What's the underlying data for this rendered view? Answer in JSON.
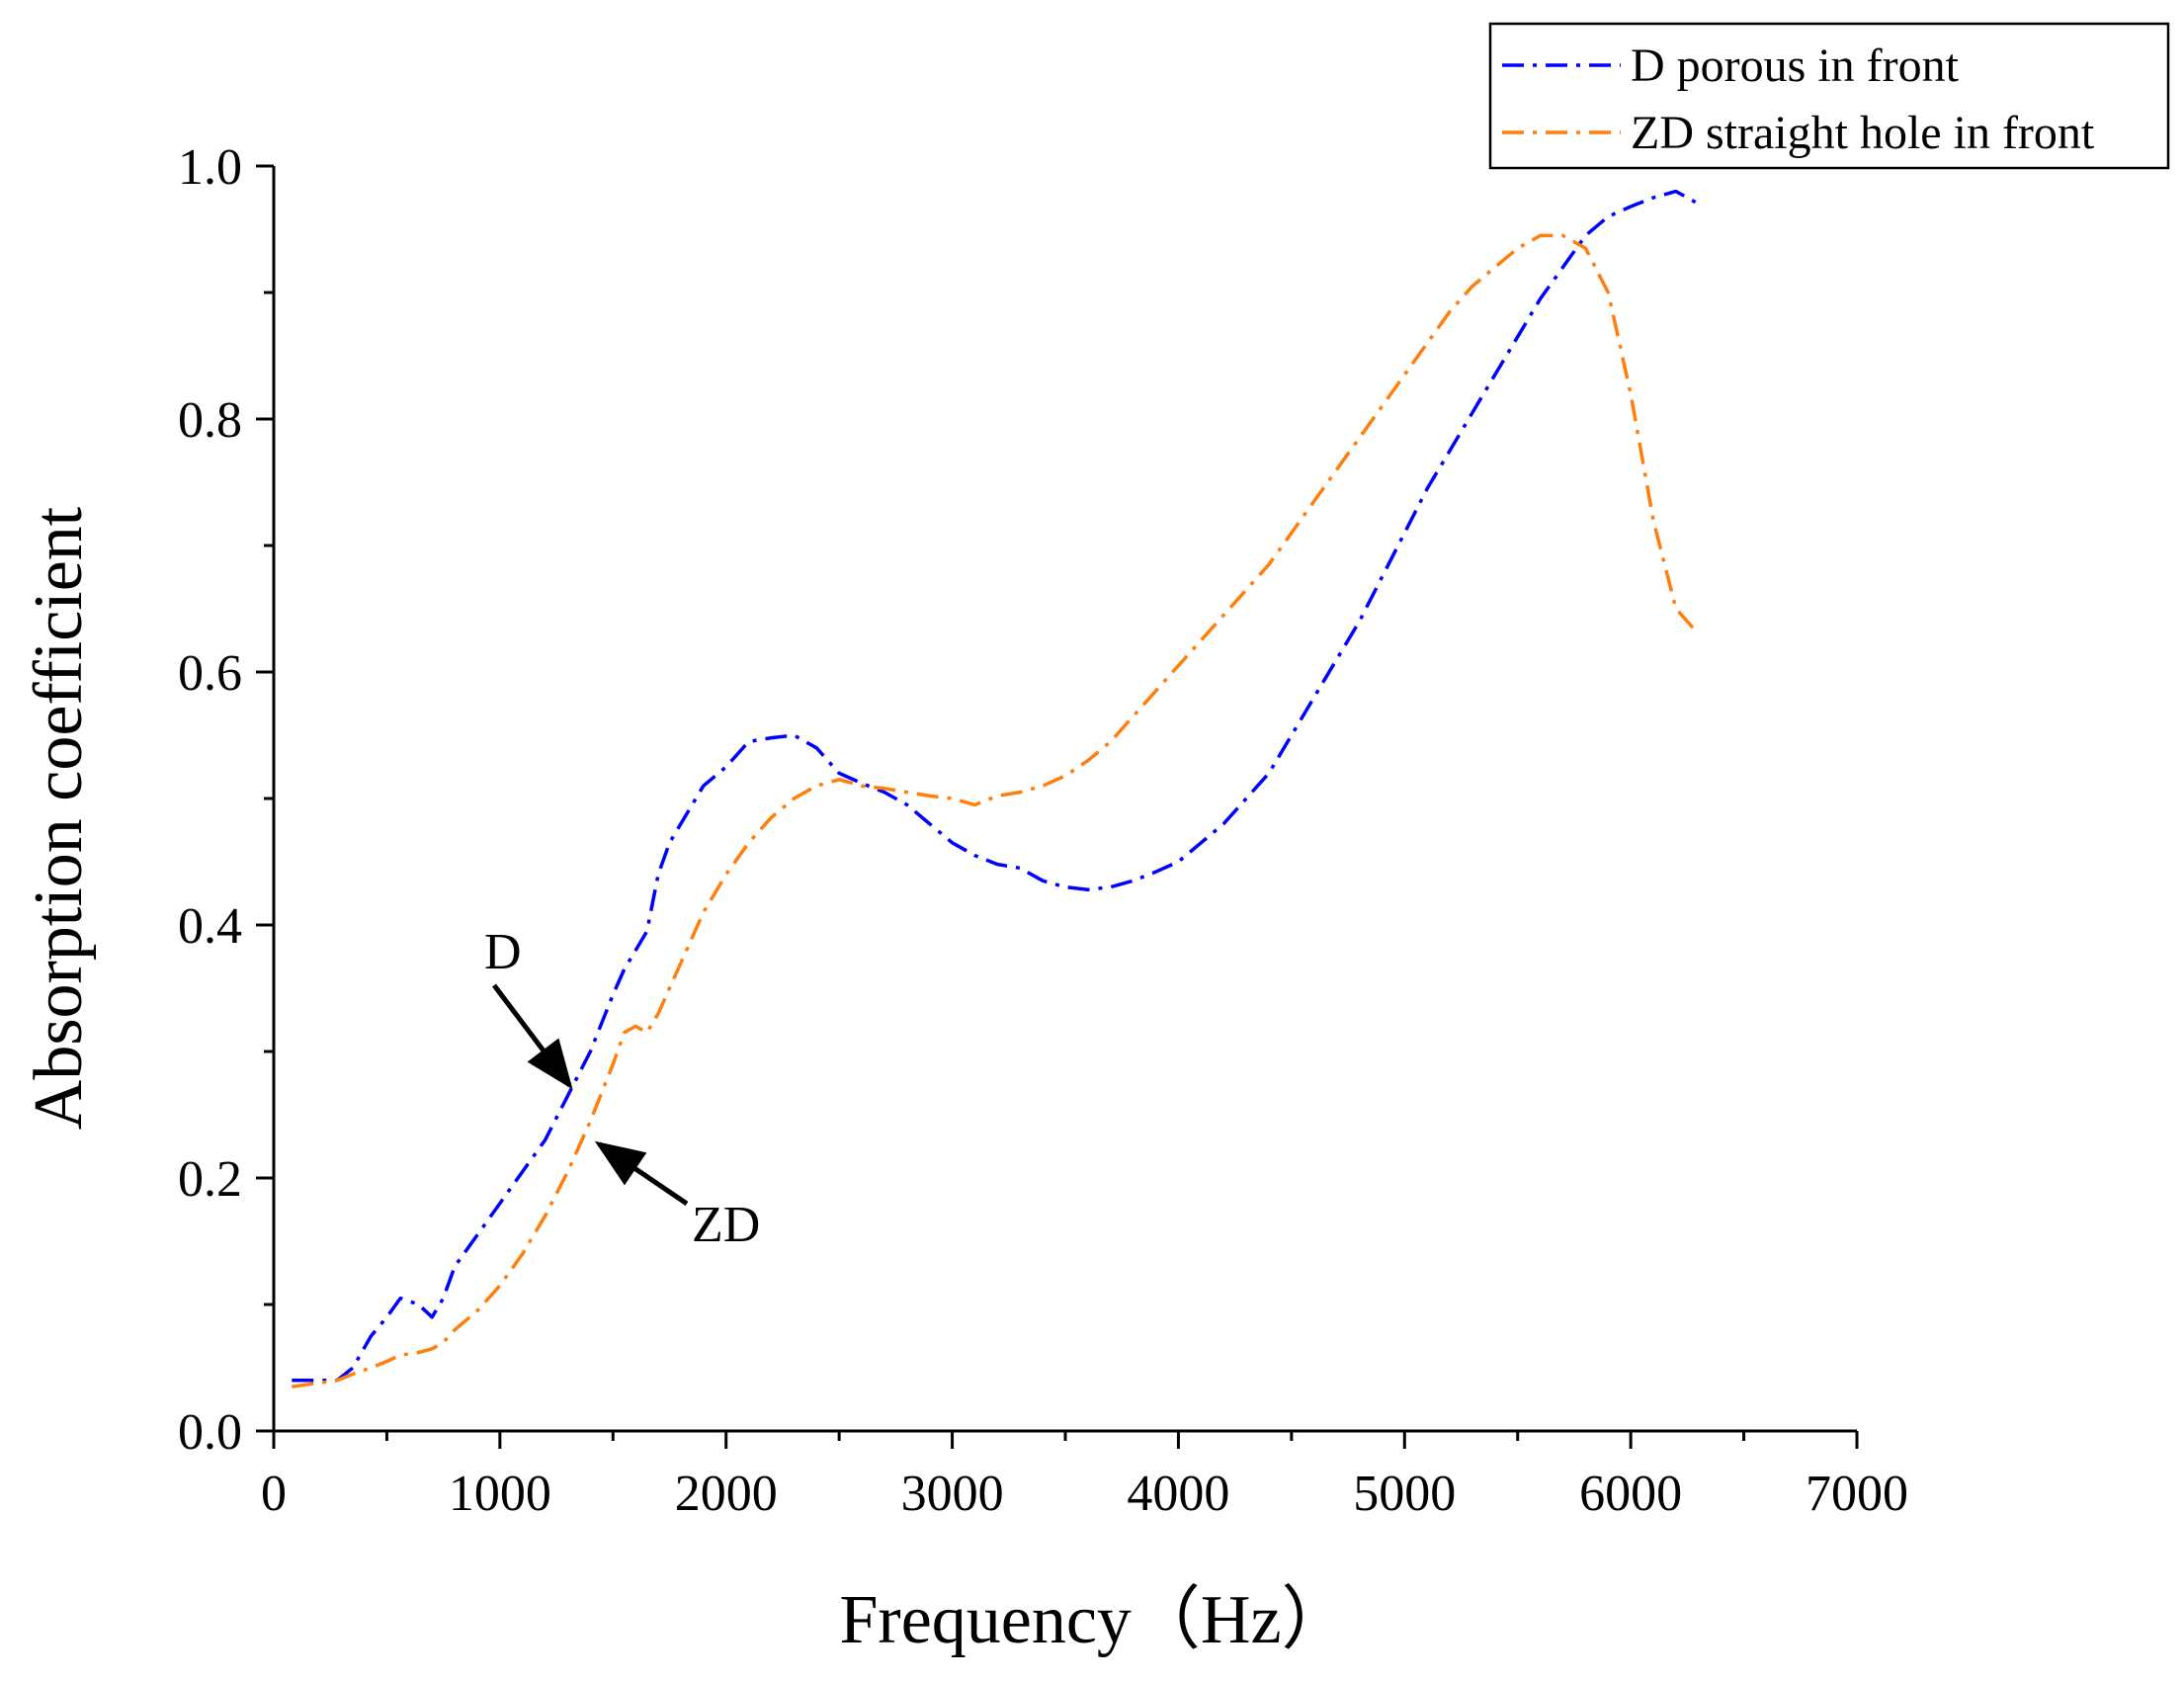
{
  "chart_data": {
    "type": "line",
    "title": "",
    "xlabel": "Frequency（Hz）",
    "ylabel": "Absorption coefficient",
    "xlim": [
      0,
      7000
    ],
    "ylim": [
      0,
      1.0
    ],
    "x_ticks": [
      0,
      1000,
      2000,
      3000,
      4000,
      5000,
      6000,
      7000
    ],
    "x_tick_labels": [
      "0",
      "1000",
      "2000",
      "3000",
      "4000",
      "5000",
      "6000",
      "7000"
    ],
    "y_ticks": [
      0.0,
      0.2,
      0.4,
      0.6,
      0.8,
      1.0
    ],
    "y_tick_labels": [
      "0.0",
      "0.2",
      "0.4",
      "0.6",
      "0.8",
      "1.0"
    ],
    "grid": false,
    "legend_position": "top-right",
    "series": [
      {
        "name": "D porous in front",
        "color": "#0000ff",
        "line_style": "dash-dot",
        "x": [
          80,
          200,
          280,
          350,
          430,
          500,
          560,
          640,
          700,
          750,
          800,
          900,
          1000,
          1100,
          1200,
          1300,
          1400,
          1500,
          1550,
          1600,
          1650,
          1700,
          1750,
          1800,
          1900,
          2000,
          2100,
          2200,
          2300,
          2400,
          2500,
          2600,
          2700,
          2800,
          2900,
          3000,
          3100,
          3200,
          3300,
          3400,
          3500,
          3600,
          3700,
          3800,
          3900,
          4000,
          4100,
          4200,
          4300,
          4400,
          4500,
          4600,
          4700,
          4800,
          4900,
          5000,
          5100,
          5200,
          5300,
          5400,
          5500,
          5600,
          5700,
          5800,
          5900,
          6000,
          6100,
          6200,
          6300
        ],
        "values": [
          0.04,
          0.04,
          0.04,
          0.05,
          0.075,
          0.09,
          0.105,
          0.1,
          0.09,
          0.105,
          0.13,
          0.155,
          0.18,
          0.205,
          0.23,
          0.265,
          0.3,
          0.345,
          0.365,
          0.38,
          0.395,
          0.44,
          0.465,
          0.48,
          0.51,
          0.525,
          0.545,
          0.548,
          0.55,
          0.54,
          0.52,
          0.512,
          0.505,
          0.495,
          0.48,
          0.465,
          0.455,
          0.448,
          0.445,
          0.435,
          0.43,
          0.428,
          0.43,
          0.435,
          0.442,
          0.45,
          0.465,
          0.48,
          0.5,
          0.52,
          0.55,
          0.58,
          0.61,
          0.64,
          0.675,
          0.71,
          0.745,
          0.775,
          0.805,
          0.835,
          0.865,
          0.895,
          0.92,
          0.945,
          0.96,
          0.968,
          0.975,
          0.98,
          0.97
        ]
      },
      {
        "name": "ZD straight hole in front",
        "color": "#ff7f0e",
        "line_style": "dash-dot",
        "x": [
          80,
          200,
          280,
          350,
          430,
          500,
          560,
          640,
          700,
          750,
          800,
          900,
          1000,
          1100,
          1200,
          1300,
          1400,
          1500,
          1550,
          1600,
          1650,
          1700,
          1750,
          1800,
          1900,
          2000,
          2100,
          2200,
          2300,
          2400,
          2500,
          2600,
          2700,
          2800,
          2900,
          3000,
          3100,
          3200,
          3300,
          3400,
          3500,
          3600,
          3700,
          3800,
          3900,
          4000,
          4100,
          4200,
          4300,
          4400,
          4500,
          4600,
          4700,
          4800,
          4900,
          5000,
          5100,
          5200,
          5300,
          5400,
          5500,
          5600,
          5700,
          5800,
          5900,
          6000,
          6100,
          6200,
          6300
        ],
        "values": [
          0.035,
          0.038,
          0.04,
          0.045,
          0.05,
          0.055,
          0.06,
          0.062,
          0.065,
          0.07,
          0.08,
          0.095,
          0.115,
          0.14,
          0.17,
          0.205,
          0.245,
          0.29,
          0.315,
          0.32,
          0.315,
          0.33,
          0.35,
          0.37,
          0.41,
          0.44,
          0.465,
          0.485,
          0.5,
          0.51,
          0.515,
          0.51,
          0.508,
          0.505,
          0.502,
          0.5,
          0.495,
          0.502,
          0.505,
          0.51,
          0.518,
          0.53,
          0.545,
          0.565,
          0.585,
          0.605,
          0.625,
          0.645,
          0.665,
          0.685,
          0.71,
          0.735,
          0.76,
          0.785,
          0.81,
          0.835,
          0.86,
          0.885,
          0.905,
          0.92,
          0.935,
          0.945,
          0.945,
          0.935,
          0.9,
          0.82,
          0.72,
          0.65,
          0.63
        ]
      }
    ],
    "annotations": [
      {
        "text": "D",
        "points_to_series": "D porous in front",
        "x": 1300,
        "y": 0.27
      },
      {
        "text": "ZD",
        "points_to_series": "ZD straight hole in front",
        "x": 1420,
        "y": 0.23
      }
    ]
  }
}
